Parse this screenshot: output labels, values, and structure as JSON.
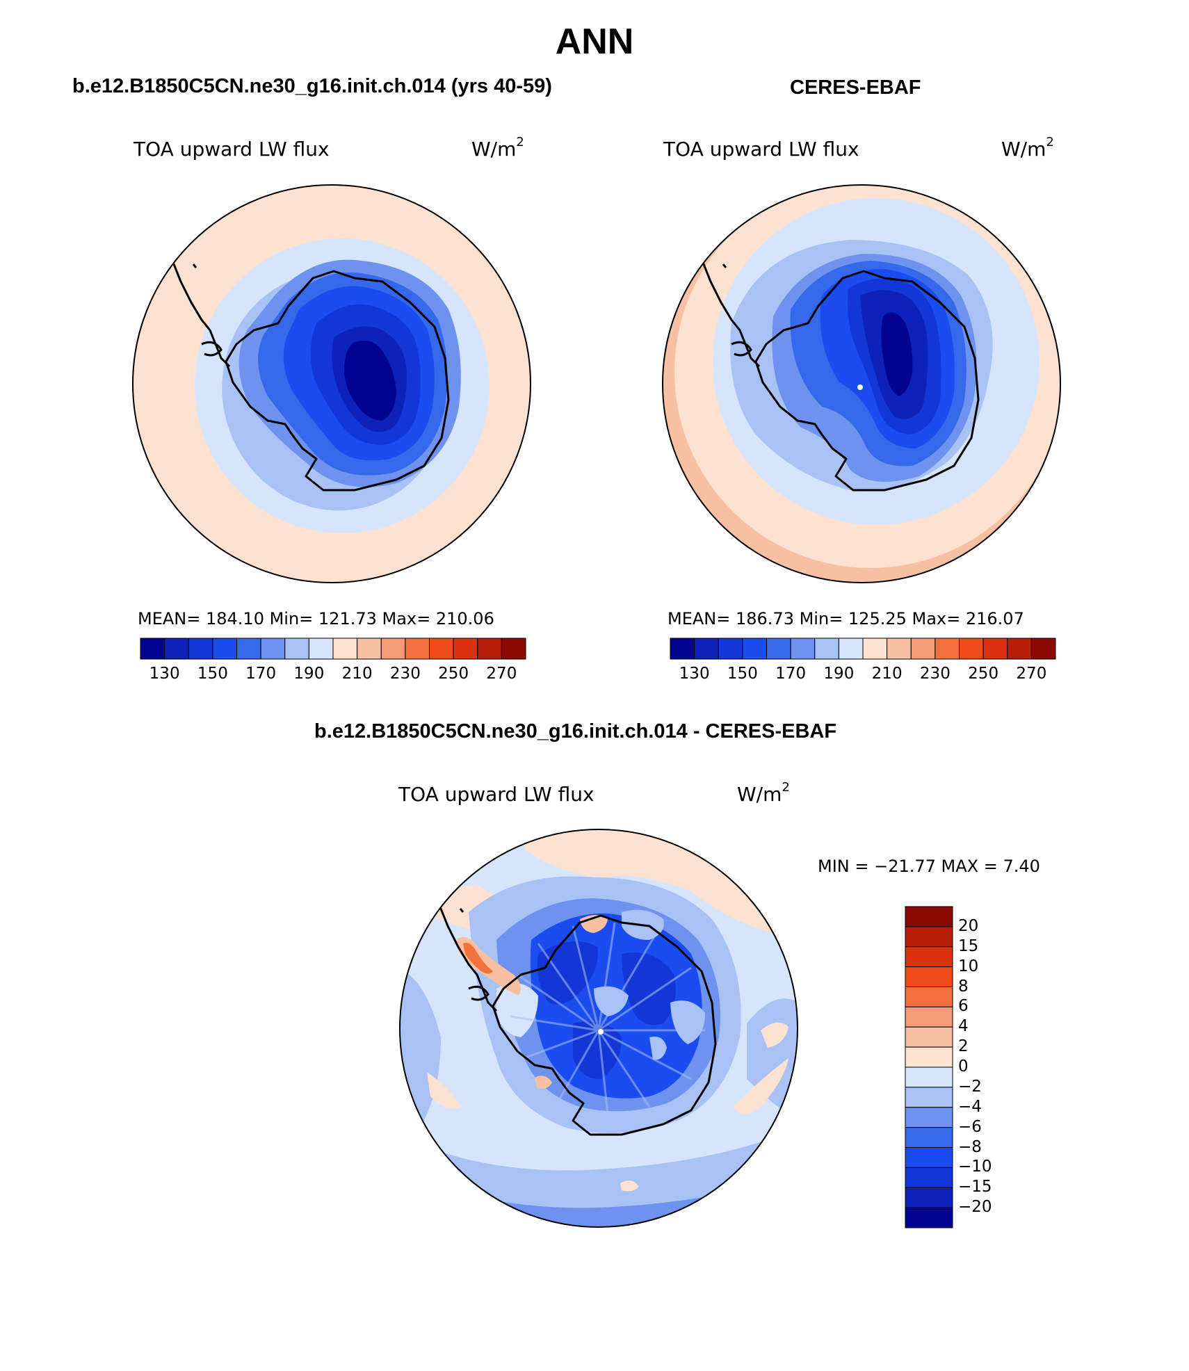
{
  "title": "ANN",
  "panels": [
    {
      "title": "b.e12.B1850C5CN.ne30_g16.init.ch.014 (yrs 40-59)",
      "variable": "TOA upward LW flux",
      "units": "W/m",
      "units_exp": "2",
      "stats": "MEAN= 184.10   Min= 121.73   Max= 210.06"
    },
    {
      "title": "CERES-EBAF",
      "variable": "TOA upward LW flux",
      "units": "W/m",
      "units_exp": "2",
      "stats": "MEAN= 186.73   Min= 125.25   Max= 216.07"
    },
    {
      "title": "b.e12.B1850C5CN.ne30_g16.init.ch.014 - CERES-EBAF",
      "variable": "TOA upward LW flux",
      "units": "W/m",
      "units_exp": "2",
      "stats": "MIN = −21.77 MAX =    7.40"
    }
  ],
  "colorbar_abs": {
    "ticks": [
      "130",
      "150",
      "170",
      "190",
      "210",
      "230",
      "250",
      "270"
    ],
    "colors": [
      "#02048f",
      "#0d22b8",
      "#1237d6",
      "#1a4cf0",
      "#3568ea",
      "#6e93ee",
      "#a9c2f5",
      "#d6e5fb",
      "#fde2d1",
      "#f8c0a3",
      "#f59a76",
      "#f3703f",
      "#ef4b1a",
      "#dd3211",
      "#b81f0a",
      "#8c0a04"
    ]
  },
  "colorbar_diff": {
    "labels": [
      "20",
      "15",
      "10",
      "8",
      "6",
      "4",
      "2",
      "0",
      "−2",
      "−4",
      "−6",
      "−8",
      "−10",
      "−15",
      "−20"
    ],
    "colors": [
      "#8c0a04",
      "#b81f0a",
      "#dd3211",
      "#ef4b1a",
      "#f3703f",
      "#f59a76",
      "#f8c0a3",
      "#fde2d1",
      "#d6e5fb",
      "#a9c2f5",
      "#6e93ee",
      "#3568ea",
      "#1a4cf0",
      "#1237d6",
      "#0d22b8",
      "#02048f"
    ]
  },
  "map_colors": {
    "ocean_warm": "#fde2d1",
    "ocean_warm2": "#f8c0a3",
    "ocean_light": "#d6e5fb",
    "ring2": "#a9c2f5",
    "ring3": "#6e93ee",
    "ring4": "#3568ea",
    "ring5": "#1a4cf0",
    "ring6": "#1237d6",
    "ring7": "#0d22b8",
    "core": "#02048f",
    "diff_pos": "#f3703f",
    "white": "#ffffff"
  }
}
